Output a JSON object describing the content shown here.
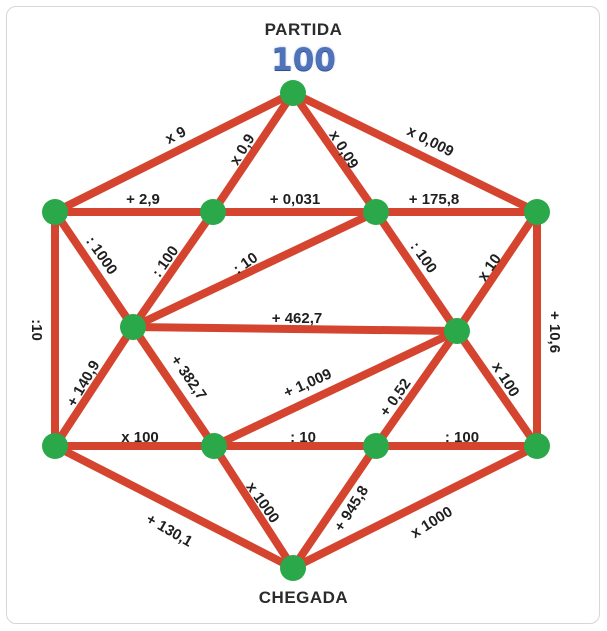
{
  "colors": {
    "edge": "#d4442f",
    "node": "#2aa84a",
    "label": "#1f1f1f",
    "start_value": "#4f72b8"
  },
  "start": {
    "label": "PARTIDA",
    "value": "100"
  },
  "end": {
    "label": "CHEGADA"
  },
  "nodes": [
    {
      "id": "top"
    },
    {
      "id": "upper-far-left"
    },
    {
      "id": "upper-inner-left"
    },
    {
      "id": "upper-inner-right"
    },
    {
      "id": "upper-far-right"
    },
    {
      "id": "middle-left"
    },
    {
      "id": "middle-right"
    },
    {
      "id": "lower-far-left"
    },
    {
      "id": "lower-inner-left"
    },
    {
      "id": "lower-inner-right"
    },
    {
      "id": "lower-far-right"
    },
    {
      "id": "bottom"
    }
  ],
  "edges": [
    {
      "from": "top",
      "to": "upper-far-left",
      "label": "x 9"
    },
    {
      "from": "top",
      "to": "upper-inner-left",
      "label": "x 0,9"
    },
    {
      "from": "top",
      "to": "upper-inner-right",
      "label": "x 0,09"
    },
    {
      "from": "top",
      "to": "upper-far-right",
      "label": "x 0,009"
    },
    {
      "from": "upper-far-left",
      "to": "upper-inner-left",
      "label": "+ 2,9"
    },
    {
      "from": "upper-inner-left",
      "to": "upper-inner-right",
      "label": "+ 0,031"
    },
    {
      "from": "upper-inner-right",
      "to": "upper-far-right",
      "label": "+ 175,8"
    },
    {
      "from": "upper-far-left",
      "to": "middle-left",
      "label": ": 1000"
    },
    {
      "from": "upper-inner-left",
      "to": "middle-left",
      "label": ": 100"
    },
    {
      "from": "upper-inner-right",
      "to": "middle-left",
      "label": ": 10"
    },
    {
      "from": "upper-inner-right",
      "to": "middle-right",
      "label": ": 100"
    },
    {
      "from": "upper-far-right",
      "to": "middle-right",
      "label": "x 10"
    },
    {
      "from": "upper-far-left",
      "to": "lower-far-left",
      "label": ":10"
    },
    {
      "from": "upper-far-right",
      "to": "lower-far-right",
      "label": "+ 10,6"
    },
    {
      "from": "middle-left",
      "to": "middle-right",
      "label": "+ 462,7"
    },
    {
      "from": "middle-left",
      "to": "lower-far-left",
      "label": "+ 140,9"
    },
    {
      "from": "middle-left",
      "to": "lower-inner-left",
      "label": "+ 382,7"
    },
    {
      "from": "middle-right",
      "to": "lower-inner-left",
      "label": "+ 1,009"
    },
    {
      "from": "middle-right",
      "to": "lower-inner-right",
      "label": "+ 0,52"
    },
    {
      "from": "middle-right",
      "to": "lower-far-right",
      "label": "x 100"
    },
    {
      "from": "lower-far-left",
      "to": "lower-inner-left",
      "label": "x 100"
    },
    {
      "from": "lower-inner-left",
      "to": "lower-inner-right",
      "label": ": 10"
    },
    {
      "from": "lower-inner-right",
      "to": "lower-far-right",
      "label": ": 100"
    },
    {
      "from": "lower-far-left",
      "to": "bottom",
      "label": "+ 130,1"
    },
    {
      "from": "lower-inner-left",
      "to": "bottom",
      "label": "x 1000"
    },
    {
      "from": "lower-inner-right",
      "to": "bottom",
      "label": "+ 945,8"
    },
    {
      "from": "lower-far-right",
      "to": "bottom",
      "label": "x 1000"
    }
  ]
}
